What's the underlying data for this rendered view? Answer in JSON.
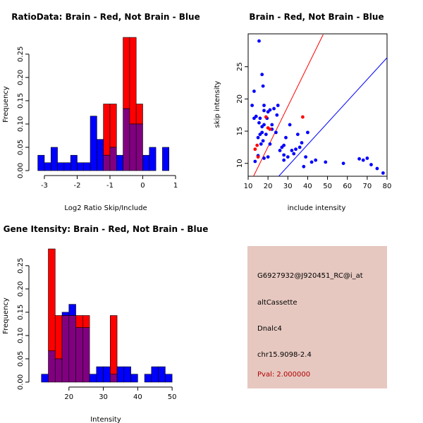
{
  "colors": {
    "brain": "#ff0000",
    "not_brain": "#0000ff",
    "overlap": "#800080",
    "info_bg": "#e6c8c0",
    "pval_text": "#b00000"
  },
  "info_panel": {
    "probe": "G6927932@J920451_RC@i_at",
    "event_type": "altCassette",
    "gene": "Dnalc4",
    "location": "chr15.9098-2.4",
    "pval": "Pval: 2.000000"
  },
  "chart_data": [
    {
      "type": "bar",
      "title": "RatioData: Brain - Red, Not Brain - Blue",
      "xlabel": "Log2 Ratio Skip/Include",
      "ylabel": "Frequency",
      "xlim": [
        -3.3,
        1.0
      ],
      "ylim": [
        0,
        0.28
      ],
      "bin_start": -3.2,
      "bin_width": 0.2,
      "xticks": [
        -3,
        -2,
        -1,
        0,
        1
      ],
      "yticks": [
        0.0,
        0.05,
        0.1,
        0.15,
        0.2,
        0.25
      ],
      "series": [
        {
          "name": "Not Brain",
          "values": [
            0.033,
            0.017,
            0.05,
            0.017,
            0.017,
            0.033,
            0.017,
            0.017,
            0.117,
            0.067,
            0.033,
            0.05,
            0.033,
            0.133,
            0.1,
            0.1,
            0.033,
            0.05,
            0,
            0.05
          ]
        },
        {
          "name": "Brain",
          "values": [
            0,
            0,
            0,
            0,
            0,
            0,
            0,
            0,
            0,
            0,
            0.143,
            0.143,
            0,
            0.286,
            0.286,
            0.143,
            0,
            0,
            0,
            0
          ]
        }
      ]
    },
    {
      "type": "scatter",
      "title": "Brain - Red, Not Brain - Blue",
      "xlabel": "include intensity",
      "ylabel": "skip intensity",
      "xlim": [
        10,
        80
      ],
      "ylim": [
        8,
        30
      ],
      "xticks": [
        10,
        20,
        30,
        40,
        50,
        60,
        70,
        80
      ],
      "yticks": [
        10,
        15,
        20,
        25
      ],
      "series": [
        {
          "name": "Not Brain",
          "points": [
            [
              15.5,
              29
            ],
            [
              12,
              19
            ],
            [
              13,
              21.2
            ],
            [
              13,
              17
            ],
            [
              14,
              17.3
            ],
            [
              15,
              14
            ],
            [
              16,
              14.5
            ],
            [
              15.5,
              16.3
            ],
            [
              16,
              17
            ],
            [
              17,
              23.8
            ],
            [
              17,
              15.7
            ],
            [
              17.5,
              22
            ],
            [
              18,
              16
            ],
            [
              18,
              19
            ],
            [
              18,
              18.2
            ],
            [
              17,
              14.8
            ],
            [
              16.5,
              13
            ],
            [
              17.5,
              13.5
            ],
            [
              19,
              14.5
            ],
            [
              19.5,
              17
            ],
            [
              20,
              18
            ],
            [
              21,
              18.3
            ],
            [
              22,
              16
            ],
            [
              22,
              15.3
            ],
            [
              21,
              13
            ],
            [
              20,
              11
            ],
            [
              18,
              10.8
            ],
            [
              15,
              11.2
            ],
            [
              13.5,
              10.3
            ],
            [
              23,
              18.5
            ],
            [
              24,
              14.8
            ],
            [
              24.5,
              17.5
            ],
            [
              25,
              19
            ],
            [
              26,
              12
            ],
            [
              27,
              12.5
            ],
            [
              28,
              12.8
            ],
            [
              28,
              11.3
            ],
            [
              28,
              10.5
            ],
            [
              29,
              14
            ],
            [
              30,
              11
            ],
            [
              31,
              16
            ],
            [
              32,
              12
            ],
            [
              33,
              11.5
            ],
            [
              34,
              12.2
            ],
            [
              35,
              14.5
            ],
            [
              36,
              12.5
            ],
            [
              37,
              13.2
            ],
            [
              38,
              9.5
            ],
            [
              39,
              11
            ],
            [
              40,
              14.8
            ],
            [
              42,
              10.2
            ],
            [
              44,
              10.5
            ],
            [
              49,
              10.2
            ],
            [
              58,
              10
            ],
            [
              66,
              10.7
            ],
            [
              68,
              10.5
            ],
            [
              70,
              10.8
            ],
            [
              72,
              9.8
            ],
            [
              75,
              9.2
            ],
            [
              78,
              8.5
            ]
          ]
        },
        {
          "name": "Brain",
          "points": [
            [
              13.5,
              12.2
            ],
            [
              14.5,
              12.8
            ],
            [
              15,
              11
            ],
            [
              19,
              17.2
            ],
            [
              20,
              15.5
            ],
            [
              21,
              15.3
            ],
            [
              37.5,
              17.2
            ]
          ]
        }
      ],
      "lines": [
        {
          "name": "Brain fit",
          "color": "#ff0000",
          "from": [
            12.7,
            8
          ],
          "to": [
            47.8,
            30
          ]
        },
        {
          "name": "Not Brain fit",
          "color": "#0000ff",
          "from": [
            25.4,
            8
          ],
          "to": [
            80,
            26.4
          ]
        }
      ]
    },
    {
      "type": "bar",
      "title": "Gene Itensity: Brain - Red, Not Brain - Blue",
      "xlabel": "Intensity",
      "ylabel": "Frequency",
      "xlim": [
        10,
        51
      ],
      "ylim": [
        0,
        0.28
      ],
      "bin_start": 12,
      "bin_width": 2,
      "xticks": [
        20,
        30,
        40,
        50
      ],
      "yticks": [
        0.0,
        0.05,
        0.1,
        0.15,
        0.2,
        0.25
      ],
      "series": [
        {
          "name": "Not Brain",
          "values": [
            0.017,
            0.067,
            0.05,
            0.15,
            0.167,
            0.117,
            0.117,
            0.017,
            0.033,
            0.033,
            0.017,
            0.033,
            0.033,
            0.017,
            0,
            0.017,
            0.033,
            0.033,
            0.017
          ]
        },
        {
          "name": "Brain",
          "values": [
            0,
            0.286,
            0.143,
            0.143,
            0.143,
            0.143,
            0.143,
            0,
            0,
            0,
            0.143,
            0,
            0,
            0,
            0,
            0,
            0,
            0,
            0
          ]
        }
      ]
    }
  ]
}
